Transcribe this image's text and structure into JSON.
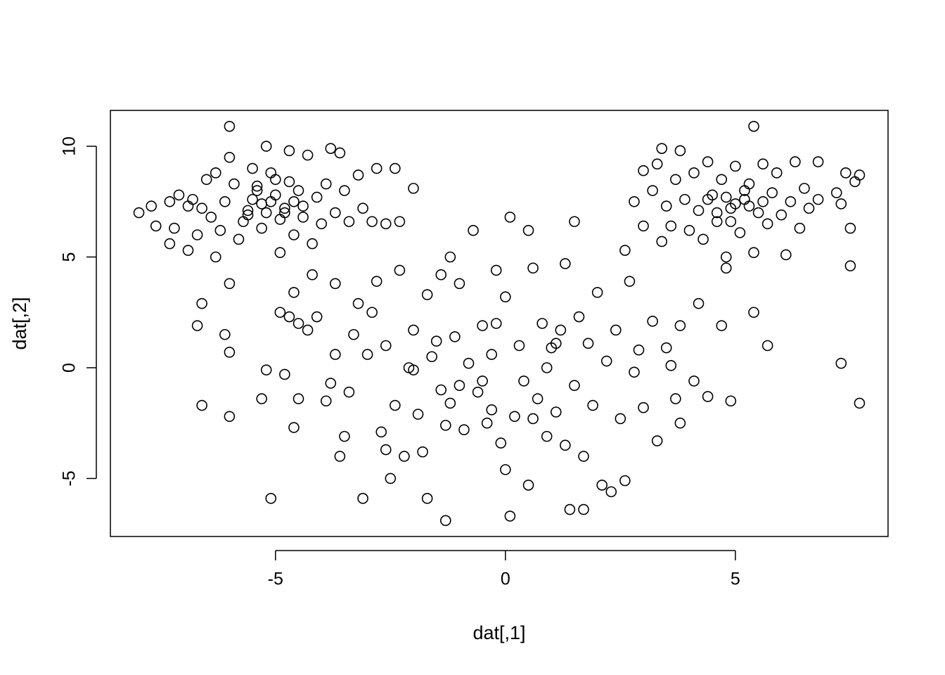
{
  "chart_data": {
    "type": "scatter",
    "x_label": "dat[,1]",
    "y_label": "dat[,2]",
    "xlim": [
      -8.59,
      8.32
    ],
    "ylim": [
      -7.62,
      11.62
    ],
    "xticks": [
      -5,
      0,
      5
    ],
    "yticks": [
      -5,
      0,
      5,
      10
    ],
    "color": "#000000",
    "x": [
      -7.97,
      -7.7,
      -7.6,
      -7.3,
      -7.3,
      -7.2,
      -7.1,
      -6.9,
      -6.9,
      -6.8,
      -6.7,
      -6.6,
      -6.5,
      -6.4,
      -6.3,
      -6.3,
      -6.2,
      -6.1,
      -6.0,
      -6.0,
      -5.9,
      -5.8,
      -5.7,
      -5.6,
      -5.5,
      -5.4,
      -5.3,
      -5.2,
      -5.1,
      -5.0,
      -4.9,
      -4.8,
      -4.7,
      -4.6,
      -4.5,
      -4.4,
      -4.3,
      -4.2,
      -4.1,
      -4.0,
      -3.9,
      -3.8,
      -3.7,
      -3.6,
      -3.5,
      -3.4,
      -3.2,
      -3.1,
      -2.9,
      -2.8,
      -2.6,
      -2.4,
      -2.3,
      -2.0,
      -5.3,
      -5.0,
      -4.8,
      -5.5,
      -4.6,
      -5.2,
      -4.9,
      -5.4,
      -4.7,
      -5.6,
      -4.4,
      -5.1,
      3.0,
      3.3,
      3.4,
      3.5,
      3.6,
      3.7,
      3.8,
      3.9,
      4.0,
      4.1,
      4.2,
      4.3,
      4.4,
      4.5,
      4.6,
      4.7,
      4.8,
      4.8,
      4.9,
      5.0,
      5.1,
      5.2,
      5.3,
      5.4,
      5.4,
      5.5,
      5.6,
      5.7,
      5.8,
      5.9,
      6.0,
      6.1,
      6.2,
      6.3,
      6.4,
      6.5,
      6.6,
      6.8,
      6.8,
      7.2,
      7.3,
      7.5,
      7.4,
      7.6,
      7.7,
      7.5,
      2.8,
      3.0,
      3.2,
      3.4,
      5.0,
      4.8,
      5.3,
      4.6,
      5.2,
      4.4,
      5.6,
      4.9,
      -6.6,
      -6.7,
      -6.6,
      -6.1,
      -6.0,
      -6.0,
      -6.0,
      -5.2,
      -5.3,
      -5.1,
      -4.9,
      -4.8,
      -4.7,
      -4.6,
      -4.5,
      -4.6,
      -4.5,
      -4.3,
      -4.2,
      -4.1,
      -3.9,
      -3.8,
      -3.7,
      -3.7,
      -3.6,
      -3.5,
      -3.4,
      -3.3,
      -3.2,
      -3.1,
      -3.0,
      -2.9,
      -2.8,
      -2.7,
      -2.6,
      -2.6,
      -2.5,
      -2.4,
      -2.3,
      -2.2,
      -2.1,
      -2.0,
      -1.9,
      -1.8,
      -1.7,
      -1.7,
      -1.6,
      -1.5,
      -1.4,
      -1.4,
      -1.3,
      -1.3,
      -1.2,
      -1.1,
      -1.0,
      -1.0,
      -0.9,
      -0.8,
      -0.7,
      -0.6,
      -0.5,
      -0.4,
      -0.3,
      -0.2,
      -0.1,
      0.0,
      0.0,
      0.1,
      0.1,
      0.2,
      0.3,
      0.4,
      0.5,
      0.5,
      0.6,
      0.7,
      0.8,
      0.9,
      1.0,
      1.1,
      1.2,
      1.3,
      1.3,
      1.4,
      1.5,
      1.5,
      1.6,
      1.7,
      1.7,
      1.8,
      1.9,
      2.0,
      2.1,
      2.2,
      2.3,
      2.4,
      2.5,
      2.6,
      2.6,
      2.7,
      2.8,
      2.9,
      3.0,
      3.2,
      3.3,
      3.5,
      3.6,
      3.7,
      3.8,
      3.8,
      4.1,
      4.2,
      4.4,
      4.7,
      4.9,
      5.4,
      5.7,
      7.3,
      7.7,
      -0.2,
      0.6,
      -1.2,
      -0.5,
      1.1,
      -2.0,
      -0.3,
      0.9
    ],
    "values": [
      7.0,
      7.3,
      6.4,
      7.5,
      5.6,
      6.3,
      7.8,
      7.3,
      5.3,
      7.6,
      6.0,
      7.2,
      8.5,
      6.8,
      8.8,
      5.0,
      6.2,
      7.5,
      9.5,
      10.9,
      8.3,
      5.8,
      6.6,
      7.1,
      9.0,
      8.0,
      6.3,
      10.0,
      7.5,
      8.5,
      5.2,
      7.0,
      9.8,
      6.0,
      8.0,
      7.3,
      9.6,
      5.6,
      7.7,
      6.5,
      8.3,
      9.9,
      7.0,
      9.7,
      8.0,
      6.6,
      8.7,
      7.2,
      6.6,
      9.0,
      6.5,
      9.0,
      6.6,
      8.1,
      7.4,
      7.8,
      7.2,
      7.6,
      7.5,
      7.0,
      6.7,
      8.2,
      8.4,
      6.9,
      6.8,
      8.8,
      8.9,
      9.2,
      9.9,
      7.3,
      6.4,
      8.5,
      9.8,
      7.6,
      6.2,
      8.8,
      7.1,
      5.8,
      9.3,
      7.8,
      6.6,
      8.5,
      5.0,
      4.5,
      7.2,
      9.1,
      6.1,
      7.6,
      8.3,
      5.2,
      10.9,
      7.0,
      9.2,
      6.5,
      7.9,
      8.8,
      6.9,
      5.1,
      7.5,
      9.3,
      6.3,
      8.1,
      7.2,
      9.3,
      7.6,
      7.9,
      7.4,
      6.3,
      8.8,
      8.4,
      8.7,
      4.6,
      7.5,
      6.4,
      8.0,
      5.7,
      7.4,
      7.7,
      7.3,
      7.0,
      8.0,
      7.6,
      7.5,
      6.6,
      2.9,
      1.9,
      -1.7,
      1.5,
      3.8,
      0.7,
      -2.2,
      -0.1,
      -1.4,
      -5.9,
      2.5,
      -0.3,
      2.3,
      -2.7,
      -1.4,
      3.4,
      2.0,
      1.7,
      4.2,
      2.3,
      -1.5,
      -0.7,
      3.8,
      0.6,
      -4.0,
      -3.1,
      -1.1,
      1.5,
      2.9,
      -5.9,
      0.6,
      2.5,
      3.9,
      -2.9,
      1.0,
      -3.7,
      -5.0,
      -1.7,
      4.4,
      -4.0,
      0.0,
      1.7,
      -2.1,
      -3.8,
      3.3,
      -5.9,
      0.5,
      1.2,
      -1.0,
      4.2,
      -2.6,
      -6.9,
      5.0,
      1.4,
      -0.8,
      3.8,
      -2.8,
      0.2,
      6.2,
      -1.1,
      1.9,
      -2.5,
      0.6,
      4.4,
      -3.4,
      3.2,
      -4.6,
      6.8,
      -6.7,
      -2.2,
      1.0,
      -0.6,
      6.2,
      -5.3,
      4.5,
      -1.4,
      2.0,
      -3.1,
      0.9,
      -2.0,
      1.7,
      4.7,
      -3.5,
      -6.4,
      6.6,
      -0.8,
      2.3,
      -4.0,
      -6.4,
      1.1,
      -1.7,
      3.4,
      -5.3,
      0.3,
      -5.6,
      1.7,
      -2.3,
      5.3,
      -5.1,
      3.9,
      -0.2,
      0.8,
      -1.8,
      2.1,
      -3.3,
      0.9,
      0.1,
      -1.4,
      1.9,
      -2.5,
      -0.6,
      2.9,
      -1.3,
      1.9,
      -1.5,
      2.5,
      1.0,
      0.2,
      -1.6,
      2.0,
      -2.3,
      -1.6,
      -0.6,
      1.1,
      -0.1,
      -1.9,
      0.0
    ]
  }
}
